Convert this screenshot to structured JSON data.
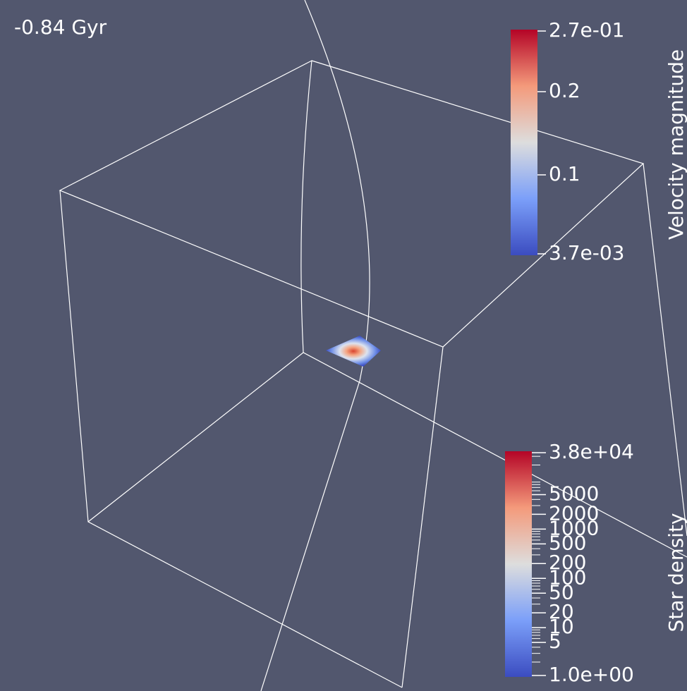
{
  "time_label": "-0.84 Gyr",
  "velocity_bar": {
    "title": "Velocity magnitude",
    "ticks": [
      "2.7e-01",
      "0.2",
      "0.1",
      "3.7e-03"
    ]
  },
  "density_bar": {
    "title": "Star density",
    "ticks": [
      "3.8e+04",
      "5000",
      "2000",
      "1000",
      "500",
      "200",
      "100",
      "50",
      "20",
      "10",
      "5",
      "1.0e+00"
    ]
  }
}
